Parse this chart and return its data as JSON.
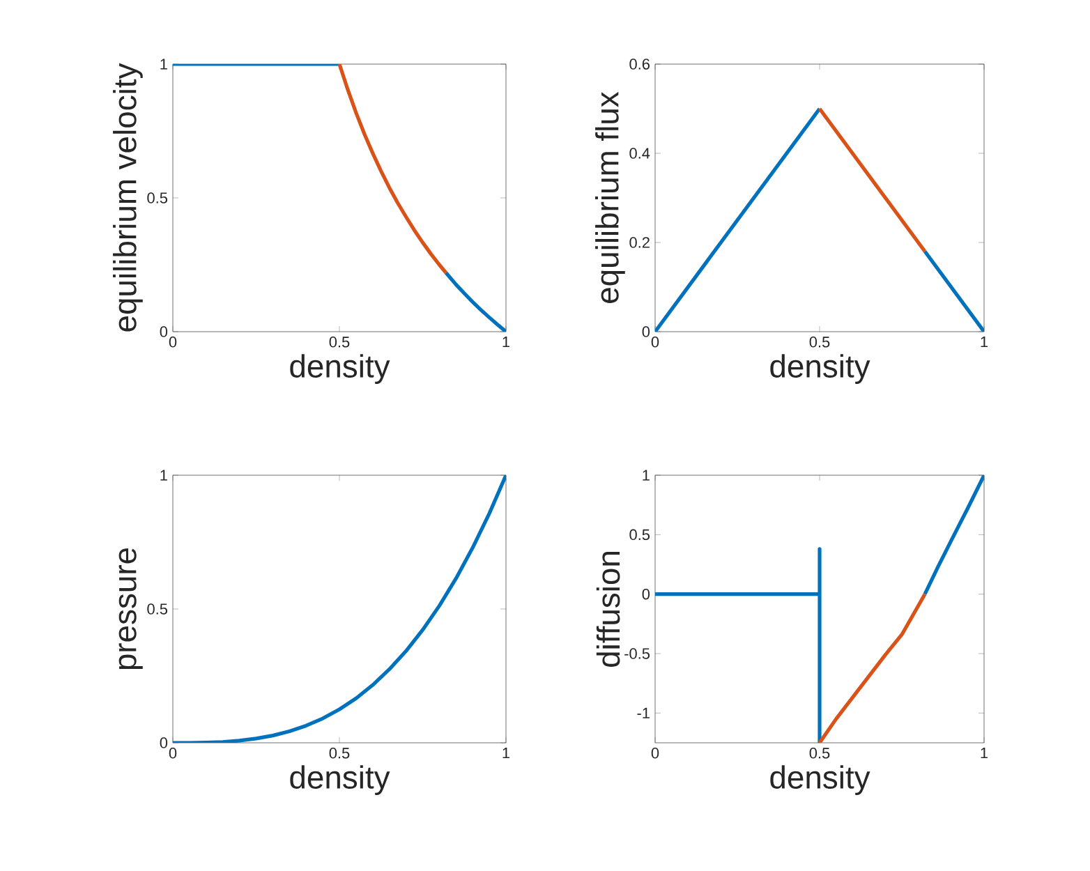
{
  "chart_data": [
    {
      "type": "line",
      "xlabel": "density",
      "ylabel": "equilibrium velocity",
      "xlim": [
        0,
        1
      ],
      "ylim": [
        0,
        1
      ],
      "xticks": [
        0,
        0.5,
        1
      ],
      "yticks": [
        0,
        0.5,
        1
      ],
      "series": [
        {
          "color": "#0072bd",
          "x": [
            0,
            0.5
          ],
          "values": [
            1,
            1
          ]
        },
        {
          "color": "#0072bd",
          "x": [
            0.82,
            0.85,
            0.875,
            0.9,
            0.925,
            0.95,
            0.975,
            1
          ],
          "values": [
            0.22,
            0.176,
            0.143,
            0.111,
            0.081,
            0.053,
            0.026,
            0
          ]
        },
        {
          "color": "#d95319",
          "x": [
            0.5,
            0.525,
            0.55,
            0.575,
            0.6,
            0.625,
            0.65,
            0.675,
            0.7,
            0.725,
            0.75,
            0.775,
            0.8,
            0.82
          ],
          "values": [
            1,
            0.905,
            0.818,
            0.739,
            0.667,
            0.6,
            0.538,
            0.481,
            0.429,
            0.379,
            0.333,
            0.29,
            0.25,
            0.22
          ]
        }
      ]
    },
    {
      "type": "line",
      "xlabel": "density",
      "ylabel": "equilibrium flux",
      "xlim": [
        0,
        1
      ],
      "ylim": [
        0,
        0.6
      ],
      "xticks": [
        0,
        0.5,
        1
      ],
      "yticks": [
        0,
        0.2,
        0.4,
        0.6
      ],
      "series": [
        {
          "color": "#0072bd",
          "x": [
            0,
            0.5
          ],
          "values": [
            0,
            0.5
          ]
        },
        {
          "color": "#0072bd",
          "x": [
            0.82,
            1
          ],
          "values": [
            0.18,
            0
          ]
        },
        {
          "color": "#d95319",
          "x": [
            0.5,
            0.82
          ],
          "values": [
            0.5,
            0.18
          ]
        }
      ]
    },
    {
      "type": "line",
      "xlabel": "density",
      "ylabel": "pressure",
      "xlim": [
        0,
        1
      ],
      "ylim": [
        0,
        1
      ],
      "xticks": [
        0,
        0.5,
        1
      ],
      "yticks": [
        0,
        0.5,
        1
      ],
      "series": [
        {
          "color": "#0072bd",
          "x": [
            0,
            0.05,
            0.1,
            0.15,
            0.2,
            0.25,
            0.3,
            0.35,
            0.4,
            0.45,
            0.5,
            0.55,
            0.6,
            0.65,
            0.7,
            0.75,
            0.8,
            0.85,
            0.9,
            0.95,
            1
          ],
          "values": [
            0,
            0,
            0.001,
            0.003,
            0.008,
            0.016,
            0.027,
            0.043,
            0.064,
            0.091,
            0.125,
            0.166,
            0.216,
            0.275,
            0.343,
            0.422,
            0.512,
            0.614,
            0.729,
            0.857,
            1
          ]
        }
      ]
    },
    {
      "type": "line",
      "xlabel": "density",
      "ylabel": "diffusion",
      "xlim": [
        0,
        1
      ],
      "ylim": [
        -1.25,
        1
      ],
      "xticks": [
        0,
        0.5,
        1
      ],
      "yticks": [
        -1,
        -0.5,
        0,
        0.5,
        1
      ],
      "series": [
        {
          "color": "#0072bd",
          "x": [
            0,
            0.5,
            0.5,
            0.5
          ],
          "values": [
            0,
            0,
            0.38,
            -1.25
          ]
        },
        {
          "color": "#0072bd",
          "x": [
            0.82,
            0.86,
            0.9,
            0.95,
            1
          ],
          "values": [
            0,
            0.23,
            0.45,
            0.72,
            1
          ]
        },
        {
          "color": "#d95319",
          "x": [
            0.5,
            0.55,
            0.6,
            0.65,
            0.7,
            0.75,
            0.82
          ],
          "values": [
            -1.25,
            -1.05,
            -0.87,
            -0.69,
            -0.51,
            -0.34,
            0
          ]
        }
      ]
    }
  ]
}
